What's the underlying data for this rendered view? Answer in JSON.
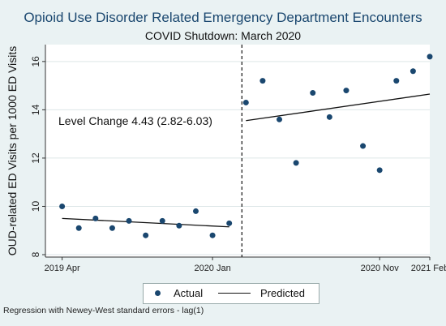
{
  "chart_data": {
    "type": "scatter",
    "title": "Opioid Use Disorder Related Emergency Department Encounters",
    "subtitle": "COVID Shutdown: March 2020",
    "ylabel": "OUD-related ED Visits per 1000 ED Visits",
    "xlabel": "",
    "ylim": [
      7.9,
      16.7
    ],
    "xlim": [
      "2019-03",
      "2021-02"
    ],
    "y_ticks": [
      8,
      10,
      12,
      14,
      16
    ],
    "x_ticks": [
      {
        "date": "2019-04",
        "label": "2019 Apr"
      },
      {
        "date": "2020-01",
        "label": "2020 Jan"
      },
      {
        "date": "2020-11",
        "label": "2020 Nov"
      },
      {
        "date": "2021-02",
        "label": "2021 Feb"
      }
    ],
    "grid": true,
    "series": [
      {
        "name": "Actual",
        "kind": "scatter",
        "x": [
          "2019-04",
          "2019-05",
          "2019-06",
          "2019-07",
          "2019-08",
          "2019-09",
          "2019-10",
          "2019-11",
          "2019-12",
          "2020-01",
          "2020-02",
          "2020-03",
          "2020-04",
          "2020-05",
          "2020-06",
          "2020-07",
          "2020-08",
          "2020-09",
          "2020-10",
          "2020-11",
          "2020-12",
          "2021-01",
          "2021-02"
        ],
        "y": [
          10.0,
          9.1,
          9.5,
          9.1,
          9.4,
          8.8,
          9.4,
          9.2,
          9.8,
          8.8,
          9.3,
          14.3,
          15.2,
          13.6,
          11.8,
          14.7,
          13.7,
          14.8,
          12.5,
          11.5,
          15.2,
          15.6,
          16.2
        ]
      },
      {
        "name": "Predicted",
        "kind": "line",
        "segments": [
          {
            "x": [
              "2019-04",
              "2020-02"
            ],
            "y": [
              9.5,
              9.15
            ]
          },
          {
            "x": [
              "2020-03",
              "2021-02"
            ],
            "y": [
              13.55,
              14.65
            ]
          }
        ]
      }
    ],
    "shutdown_line": {
      "x": "2020-03",
      "style": "dashed"
    },
    "annotations": [
      {
        "text": "Level Change 4.43 (2.82-6.03)",
        "x": "2019-10",
        "y": 13.55
      }
    ],
    "legend": {
      "position": "bottom",
      "entries": [
        "Actual",
        "Predicted"
      ]
    },
    "note": "Regression with Newey-West standard errors - lag(1)"
  },
  "colors": {
    "background": "#eaf2f3",
    "plot_area": "#ffffff",
    "marker": "#1a476f",
    "title": "#1a476f"
  }
}
